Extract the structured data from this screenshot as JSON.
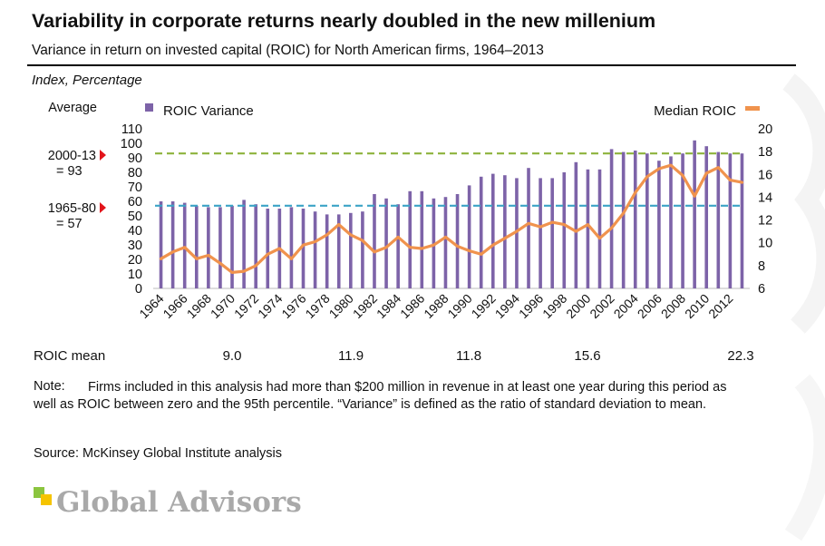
{
  "title": "Variability in corporate returns nearly doubled in the new millenium",
  "subtitle": "Variance in return on invested capital (ROIC) for North American firms, 1964–2013",
  "units_label": "Index, Percentage",
  "averages": {
    "heading": "Average",
    "recent_label": "2000-13",
    "recent_value": "= 93",
    "early_label": "1965-80",
    "early_value": "= 57"
  },
  "roic_mean": {
    "label": "ROIC mean",
    "values": [
      "9.0",
      "11.9",
      "11.8",
      "15.6",
      "22.3"
    ]
  },
  "note": {
    "label": "Note:",
    "text": "Firms included in this analysis had more than $200 million in revenue in at least one year during this period as well as ROIC between zero and the 95th percentile. “Variance” is defined as the ratio of standard deviation to mean."
  },
  "source": "Source:  McKinsey Global Institute analysis",
  "logo": {
    "text": "Global Advisors"
  },
  "colors": {
    "bar": "#7d63a8",
    "line": "#f0934d",
    "avg_recent": "#8db33c",
    "avg_early": "#3ba3c6",
    "marker": "#e2141b",
    "logo_green": "#8bc53f",
    "logo_yellow": "#f5c400"
  },
  "chart_data": {
    "type": "bar",
    "years": [
      1964,
      1965,
      1966,
      1967,
      1968,
      1969,
      1970,
      1971,
      1972,
      1973,
      1974,
      1975,
      1976,
      1977,
      1978,
      1979,
      1980,
      1981,
      1982,
      1983,
      1984,
      1985,
      1986,
      1987,
      1988,
      1989,
      1990,
      1991,
      1992,
      1993,
      1994,
      1995,
      1996,
      1997,
      1998,
      1999,
      2000,
      2001,
      2002,
      2003,
      2004,
      2005,
      2006,
      2007,
      2008,
      2009,
      2010,
      2011,
      2012,
      2013
    ],
    "x_tick_labels": [
      "1964",
      "1966",
      "1968",
      "1970",
      "1972",
      "1974",
      "1976",
      "1978",
      "1980",
      "1982",
      "1984",
      "1986",
      "1988",
      "1990",
      "1992",
      "1994",
      "1996",
      "1998",
      "2000",
      "2002",
      "2004",
      "2006",
      "2008",
      "2010",
      "2012"
    ],
    "series": [
      {
        "name": "ROIC Variance",
        "axis": "left",
        "kind": "bar",
        "values": [
          60,
          60,
          59,
          57,
          56,
          56,
          57,
          61,
          58,
          55,
          55,
          56,
          55,
          53,
          51,
          51,
          52,
          53,
          65,
          62,
          58,
          67,
          67,
          62,
          63,
          65,
          71,
          77,
          79,
          78,
          76,
          83,
          76,
          76,
          80,
          87,
          82,
          82,
          96,
          94,
          95,
          93,
          88,
          91,
          93,
          102,
          98,
          94,
          93,
          93
        ]
      },
      {
        "name": "Median ROIC",
        "axis": "right",
        "kind": "line",
        "values": [
          8.6,
          9.2,
          9.6,
          8.6,
          8.9,
          8.2,
          7.4,
          7.5,
          8.0,
          9.0,
          9.5,
          8.6,
          9.8,
          10.1,
          10.7,
          11.6,
          10.7,
          10.2,
          9.2,
          9.6,
          10.5,
          9.6,
          9.5,
          9.8,
          10.5,
          9.7,
          9.3,
          9.0,
          9.8,
          10.4,
          11.0,
          11.7,
          11.4,
          11.8,
          11.6,
          11.0,
          11.6,
          10.4,
          11.3,
          12.6,
          14.4,
          15.8,
          16.5,
          16.8,
          15.9,
          14.1,
          16.1,
          16.6,
          15.5,
          15.3
        ]
      }
    ],
    "reference_lines": [
      {
        "label": "2000-13 = 93",
        "value": 93,
        "axis": "left"
      },
      {
        "label": "1965-80 = 57",
        "value": 57,
        "axis": "left"
      }
    ],
    "y_left": {
      "ticks": [
        0,
        10,
        20,
        30,
        40,
        50,
        60,
        70,
        80,
        90,
        100,
        110
      ],
      "range": [
        0,
        110
      ]
    },
    "y_right": {
      "ticks": [
        6,
        8,
        10,
        12,
        14,
        16,
        18,
        20
      ],
      "range": [
        6,
        20
      ]
    },
    "legend": [
      "ROIC Variance",
      "Median ROIC"
    ]
  }
}
